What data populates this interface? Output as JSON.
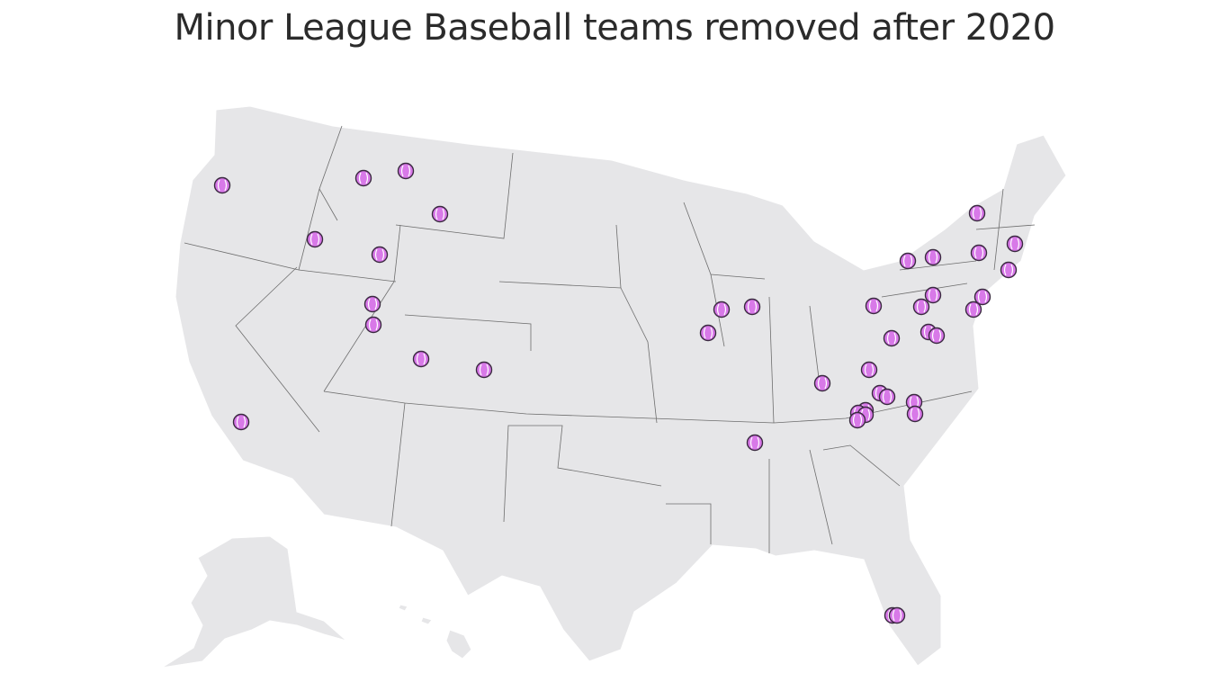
{
  "title": "Minor League Baseball teams removed after 2020"
}
